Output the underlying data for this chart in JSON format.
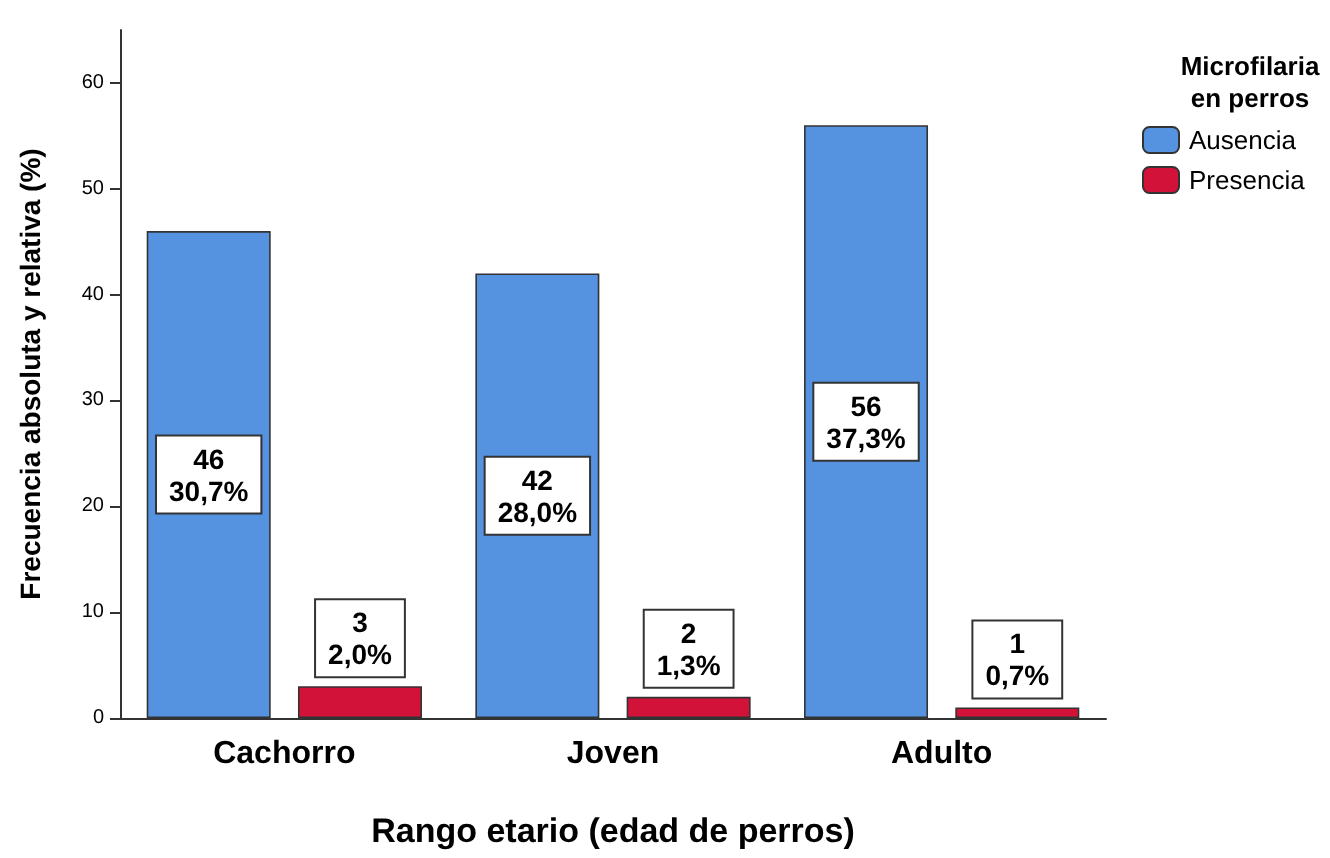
{
  "chart_data": {
    "type": "bar",
    "xlabel": "Rango etario (edad de perros)",
    "ylabel": "Frecuencia absoluta y relativa (%)",
    "legend_title": "Microfilaria\nen perros",
    "categories": [
      "Cachorro",
      "Joven",
      "Adulto"
    ],
    "series": [
      {
        "name": "Ausencia",
        "color": "#5592e0",
        "values": [
          46,
          42,
          56
        ],
        "value_labels": [
          "46\n30,7%",
          "42\n28,0%",
          "56\n37,3%"
        ]
      },
      {
        "name": "Presencia",
        "color": "#d3123a",
        "values": [
          3,
          2,
          1
        ],
        "value_labels": [
          "3\n2,0%",
          "2\n1,3%",
          "1\n0,7%"
        ]
      }
    ],
    "ylim": [
      0,
      65
    ],
    "yticks": [
      0,
      10,
      20,
      30,
      40,
      50,
      60
    ],
    "grid": false,
    "legend": "top right"
  }
}
